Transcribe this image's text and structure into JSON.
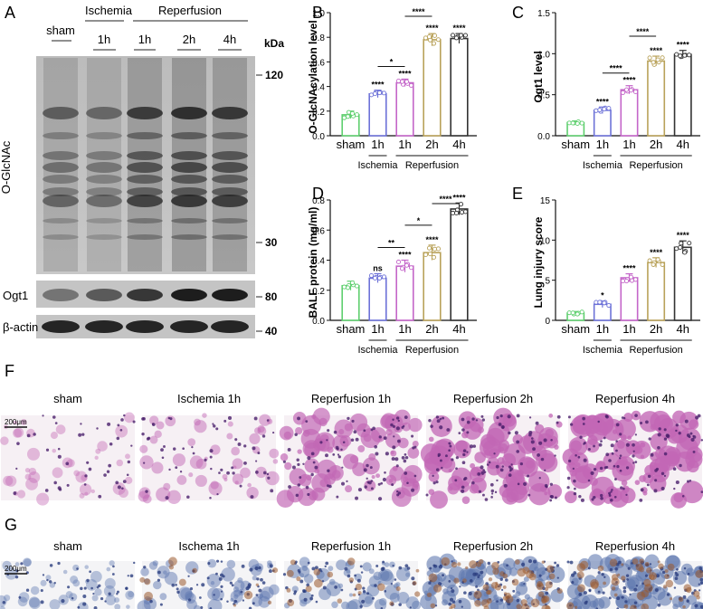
{
  "panel_letters": [
    "A",
    "B",
    "C",
    "D",
    "E",
    "F",
    "G"
  ],
  "blot": {
    "group_headers": [
      "Ischemia",
      "Reperfusion"
    ],
    "lanes": [
      "sham",
      "1h",
      "1h",
      "2h",
      "4h"
    ],
    "kda_title": "kDa",
    "markers": [
      "120",
      "30",
      "80",
      "40"
    ],
    "row_labels": [
      "O-GlcNAc",
      "Ogt1",
      "β-actin"
    ]
  },
  "colors": {
    "sham": "#5fcf6f",
    "isch1h": "#6d72d8",
    "rep1h": "#c466c9",
    "rep2h": "#b9a25a",
    "rep4h": "#333333",
    "he_tissue": "#c267b5",
    "ihc_tissue": "#5f78b0",
    "ihc_stain": "#9a5a2e"
  },
  "chart_data": [
    {
      "type": "bar",
      "panel": "B",
      "ylabel": "O-GlcNAcylation level",
      "categories": [
        "sham",
        "1h",
        "1h",
        "2h",
        "4h"
      ],
      "group_labels": [
        "Ischemia",
        "Reperfusion"
      ],
      "values": [
        0.17,
        0.34,
        0.43,
        0.78,
        0.79
      ],
      "errors": [
        0.03,
        0.03,
        0.03,
        0.05,
        0.04
      ],
      "sig_above": [
        "",
        "****",
        "****",
        "****",
        "****"
      ],
      "brackets": [
        {
          "from": 1,
          "to": 2,
          "label": "*"
        },
        {
          "from": 2,
          "to": 3,
          "label": "****"
        }
      ],
      "ylim": [
        0,
        1.0
      ],
      "yticks": [
        "0.0",
        "0.2",
        "0.4",
        "0.6",
        "0.8",
        "1.0"
      ]
    },
    {
      "type": "bar",
      "panel": "C",
      "ylabel": "Ogt1 level",
      "categories": [
        "sham",
        "1h",
        "1h",
        "2h",
        "4h"
      ],
      "group_labels": [
        "Ischemia",
        "Reperfusion"
      ],
      "values": [
        0.16,
        0.31,
        0.56,
        0.91,
        0.99
      ],
      "errors": [
        0.02,
        0.04,
        0.05,
        0.06,
        0.05
      ],
      "sig_above": [
        "",
        "****",
        "****",
        "****",
        "****"
      ],
      "brackets": [
        {
          "from": 1,
          "to": 2,
          "label": "****"
        },
        {
          "from": 2,
          "to": 3,
          "label": "****"
        }
      ],
      "ylim": [
        0,
        1.5
      ],
      "yticks": [
        "0.0",
        "0.5",
        "1.0",
        "1.5"
      ]
    },
    {
      "type": "bar",
      "panel": "D",
      "ylabel": "BALF protein (mg/ml)",
      "categories": [
        "sham",
        "1h",
        "1h",
        "2h",
        "4h"
      ],
      "group_labels": [
        "Ischemia",
        "Reperfusion"
      ],
      "values": [
        0.23,
        0.28,
        0.36,
        0.45,
        0.74
      ],
      "errors": [
        0.03,
        0.03,
        0.04,
        0.05,
        0.04
      ],
      "sig_above": [
        "",
        "ns",
        "****",
        "****",
        "****"
      ],
      "brackets": [
        {
          "from": 1,
          "to": 2,
          "label": "**"
        },
        {
          "from": 2,
          "to": 3,
          "label": "*"
        },
        {
          "from": 3,
          "to": 4,
          "label": "****"
        }
      ],
      "ylim": [
        0,
        0.8
      ],
      "yticks": [
        "0.0",
        "0.2",
        "0.4",
        "0.6",
        "0.8"
      ]
    },
    {
      "type": "bar",
      "panel": "E",
      "ylabel": "Lung injury score",
      "categories": [
        "sham",
        "1h",
        "1h",
        "2h",
        "4h"
      ],
      "group_labels": [
        "Ischemia",
        "Reperfusion"
      ],
      "values": [
        0.9,
        2.0,
        5.3,
        7.2,
        9.1
      ],
      "errors": [
        0.2,
        0.4,
        0.5,
        0.6,
        0.8
      ],
      "sig_above": [
        "",
        "*",
        "****",
        "****",
        "****"
      ],
      "brackets": [],
      "ylim": [
        0,
        15
      ],
      "yticks": [
        "0",
        "5",
        "10",
        "15"
      ]
    }
  ],
  "histology": {
    "he_titles": [
      "sham",
      "Ischemia  1h",
      "Reperfusion  1h",
      "Reperfusion  2h",
      "Reperfusion  4h"
    ],
    "ihc_titles": [
      "sham",
      "Ischema  1h",
      "Reperfusion  1h",
      "Reperfusion  2h",
      "Reperfusion  4h"
    ],
    "scale_label": "200μm"
  }
}
